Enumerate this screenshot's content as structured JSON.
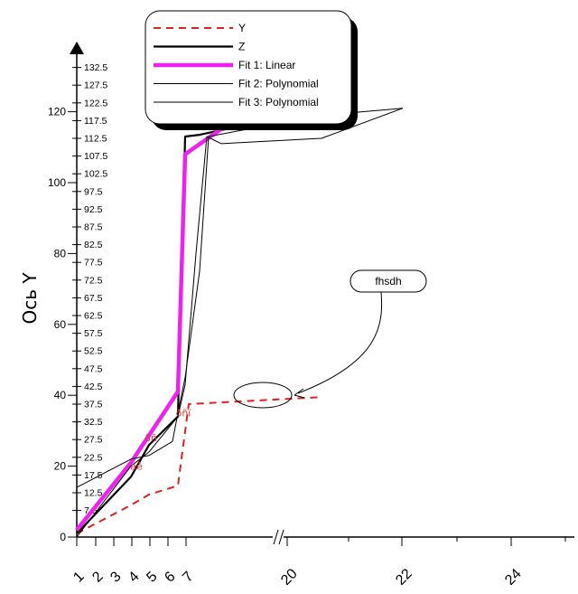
{
  "chart_data": {
    "type": "line",
    "title": "",
    "xlabel": "",
    "ylabel": "Ось Y",
    "x_categories": [
      "1",
      "2",
      "3",
      "4",
      "5",
      "6",
      "7",
      "20",
      "22",
      "24"
    ],
    "x_axis_break": "//",
    "y_major_ticks": [
      "0",
      "20",
      "40",
      "60",
      "80",
      "100",
      "120"
    ],
    "y_minor_ticks": [
      "7.5",
      "12.5",
      "17.5",
      "22.5",
      "27.5",
      "32.5",
      "37.5",
      "42.5",
      "47.5",
      "52.5",
      "57.5",
      "62.5",
      "67.5",
      "72.5",
      "77.5",
      "82.5",
      "87.5",
      "92.5",
      "97.5",
      "102.5",
      "107.5",
      "112.5",
      "117.5",
      "122.5",
      "127.5",
      "132.5"
    ],
    "ylim": [
      0,
      137
    ],
    "legend_position": "top-left",
    "series": [
      {
        "name": "Y",
        "color": "#e02020",
        "style": "dashed",
        "points": [
          [
            0,
            1
          ],
          [
            3,
            9
          ],
          [
            4,
            12
          ],
          [
            5.6,
            14.5
          ],
          [
            6.2,
            37.5
          ],
          [
            8.5,
            39.5
          ]
        ]
      },
      {
        "name": "Z",
        "color": "#000000",
        "style": "solid-thick",
        "points": [
          [
            0,
            1
          ],
          [
            3,
            17
          ],
          [
            4,
            26
          ],
          [
            5.6,
            34
          ],
          [
            6,
            113
          ],
          [
            6.8,
            113.5
          ],
          [
            8.5,
            121
          ]
        ]
      },
      {
        "name": "Fit 1: Linear",
        "color": "#ee22ee",
        "style": "solid-bold",
        "points": [
          [
            0,
            2
          ],
          [
            3,
            21
          ],
          [
            5.6,
            41
          ],
          [
            6,
            108
          ],
          [
            8.5,
            135
          ]
        ]
      },
      {
        "name": "Fit 2: Polynomial",
        "color": "#000000",
        "style": "thin",
        "points": [
          [
            0,
            0
          ],
          [
            3,
            20
          ],
          [
            4,
            24
          ],
          [
            5.6,
            34
          ],
          [
            6,
            43
          ],
          [
            6.6,
            80
          ],
          [
            7.2,
            113
          ],
          [
            8,
            111
          ],
          [
            8.5,
            112.5
          ],
          [
            10,
            121
          ]
        ]
      },
      {
        "name": "Fit 3: Polynomial",
        "color": "#000000",
        "style": "thin",
        "points": [
          [
            0,
            14
          ],
          [
            3,
            22
          ],
          [
            4,
            23
          ],
          [
            5.3,
            27
          ],
          [
            5.6,
            35
          ],
          [
            6,
            45
          ],
          [
            6.8,
            75
          ],
          [
            7.3,
            113
          ],
          [
            8.5,
            119
          ],
          [
            10,
            121
          ]
        ]
      }
    ],
    "point_labels": [
      {
        "text": "ðñ",
        "x": 4.1,
        "y": 27
      },
      {
        "text": "äê",
        "x": 3.3,
        "y": 19
      },
      {
        "text": "ðñï",
        "x": 5.9,
        "y": 34
      }
    ],
    "annotations": [
      {
        "text": "fhsdh"
      }
    ]
  }
}
